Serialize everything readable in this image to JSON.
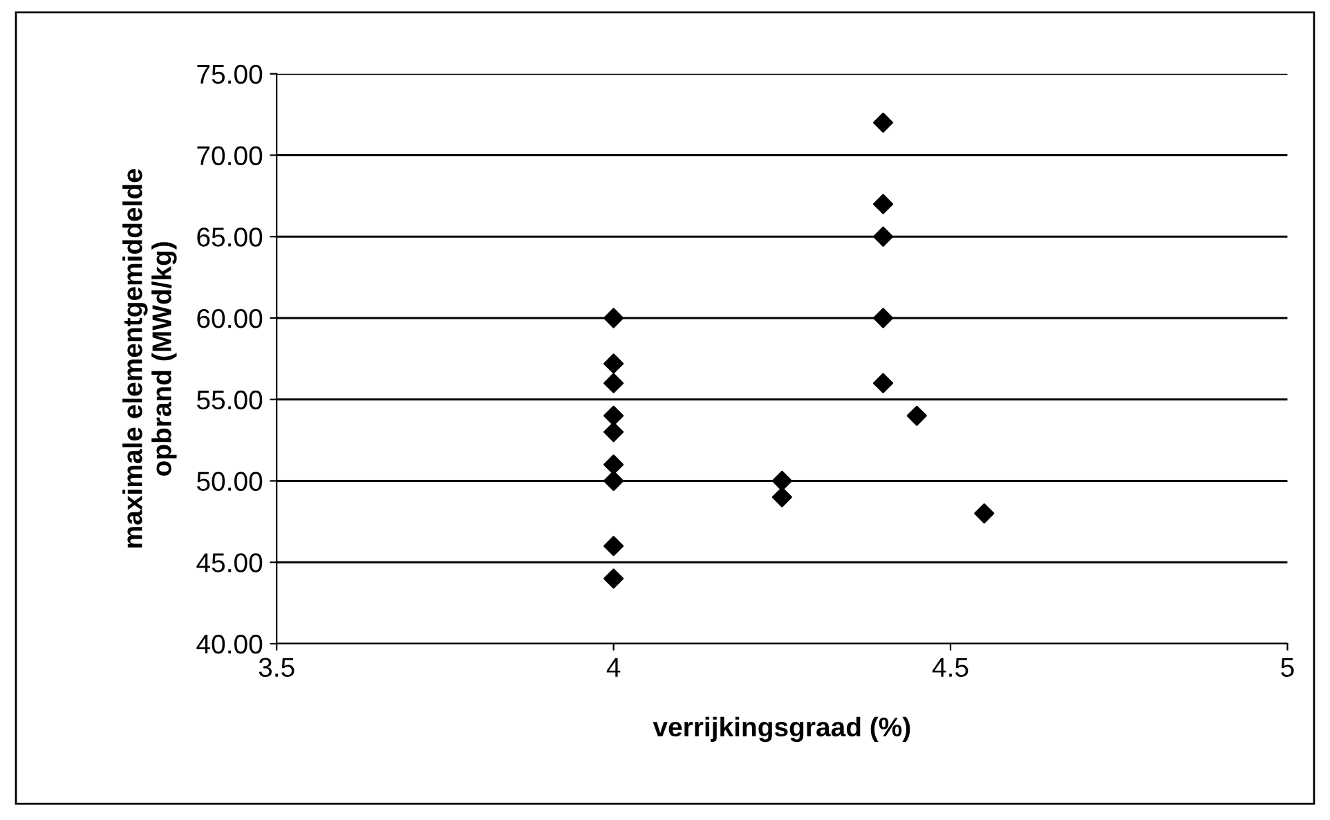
{
  "chart_data": {
    "type": "scatter",
    "xlabel": "verrijkingsgraad (%)",
    "ylabel": "maximale elementgemiddelde\nopbrand (MWd/kg)",
    "x": [
      4,
      4,
      4,
      4,
      4,
      4,
      4,
      4,
      4,
      4.25,
      4.25,
      4.4,
      4.4,
      4.4,
      4.4,
      4.4,
      4.45,
      4.55
    ],
    "series": [
      {
        "color": "#000000",
        "values": [
          60,
          57.2,
          56,
          54,
          53,
          51,
          50,
          46,
          44,
          50,
          49,
          72,
          67,
          65,
          60,
          56,
          54,
          48
        ]
      }
    ],
    "marker": "diamond",
    "grid": "y",
    "legend": false,
    "xlim": [
      3.5,
      5
    ],
    "xticks": [
      3.5,
      4,
      4.5,
      5
    ],
    "ylim": [
      40,
      75
    ],
    "yticks": [
      {
        "value": 40,
        "label": "40.00"
      },
      {
        "value": 45,
        "label": "45.00"
      },
      {
        "value": 50,
        "label": "50.00"
      },
      {
        "value": 55,
        "label": "55.00"
      },
      {
        "value": 60,
        "label": "60.00"
      },
      {
        "value": 65,
        "label": "65.00"
      },
      {
        "value": 70,
        "label": "70.00"
      },
      {
        "value": 75,
        "label": "75.00"
      }
    ]
  }
}
